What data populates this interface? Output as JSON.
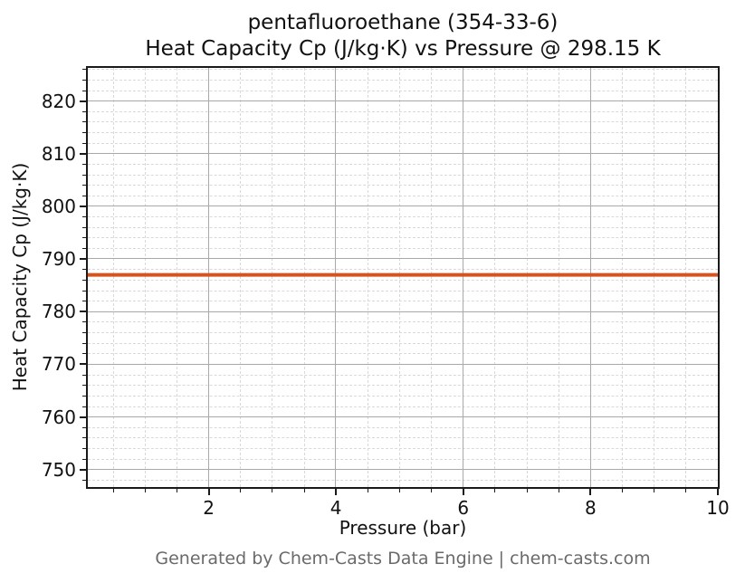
{
  "figure": {
    "title_line1": "pentafluoroethane (354-33-6)",
    "title_line2": "Heat Capacity Cp (J/kg·K) vs Pressure @ 298.15 K",
    "footer": "Generated by Chem-Casts Data Engine | chem-casts.com"
  },
  "chart_data": {
    "type": "line",
    "title": "pentafluoroethane (354-33-6)",
    "subtitle": "Heat Capacity Cp (J/kg·K) vs Pressure @ 298.15 K",
    "xlabel": "Pressure (bar)",
    "ylabel": "Heat Capacity Cp (J/kg·K)",
    "xlim": [
      0.1,
      10
    ],
    "ylim": [
      746.7,
      826.3
    ],
    "xticks": [
      2,
      4,
      6,
      8,
      10
    ],
    "yticks": [
      750,
      760,
      770,
      780,
      790,
      800,
      810,
      820
    ],
    "x_minor_step": 0.5,
    "y_minor_step": 2,
    "grid": {
      "major": true,
      "minor": true
    },
    "legend": "none",
    "series": [
      {
        "name": "Heat Capacity Cp",
        "color": "#d4531e",
        "line_width": 4,
        "x": [
          0.1,
          1,
          2,
          3,
          4,
          5,
          6,
          7,
          8,
          9,
          10
        ],
        "y": [
          787,
          787,
          787,
          787,
          787,
          787,
          787,
          787,
          787,
          787,
          787
        ]
      }
    ],
    "colors": {
      "line": "#d4531e",
      "grid_major": "#a9a9a9",
      "grid_minor": "#d9d9d9",
      "spine": "#1a1a1a",
      "tick": "#1a1a1a",
      "text": "#111111",
      "footer_text": "#6a6a6a",
      "background": "#ffffff"
    }
  }
}
